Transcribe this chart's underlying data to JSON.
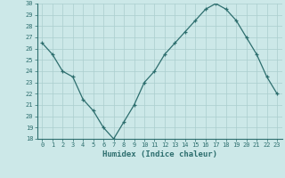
{
  "x": [
    0,
    1,
    2,
    3,
    4,
    5,
    6,
    7,
    8,
    9,
    10,
    11,
    12,
    13,
    14,
    15,
    16,
    17,
    18,
    19,
    20,
    21,
    22,
    23
  ],
  "y": [
    26.5,
    25.5,
    24.0,
    23.5,
    21.5,
    20.5,
    19.0,
    18.0,
    19.5,
    21.0,
    23.0,
    24.0,
    25.5,
    26.5,
    27.5,
    28.5,
    29.5,
    30.0,
    29.5,
    28.5,
    27.0,
    25.5,
    23.5,
    22.0
  ],
  "xlabel": "Humidex (Indice chaleur)",
  "ylim": [
    18,
    30
  ],
  "yticks": [
    18,
    19,
    20,
    21,
    22,
    23,
    24,
    25,
    26,
    27,
    28,
    29,
    30
  ],
  "xticks": [
    0,
    1,
    2,
    3,
    4,
    5,
    6,
    7,
    8,
    9,
    10,
    11,
    12,
    13,
    14,
    15,
    16,
    17,
    18,
    19,
    20,
    21,
    22,
    23
  ],
  "line_color": "#2d6e6e",
  "marker": "+",
  "bg_color": "#cce8e8",
  "grid_color": "#aacece",
  "tick_label_color": "#2d6e6e",
  "xlabel_color": "#2d6e6e"
}
